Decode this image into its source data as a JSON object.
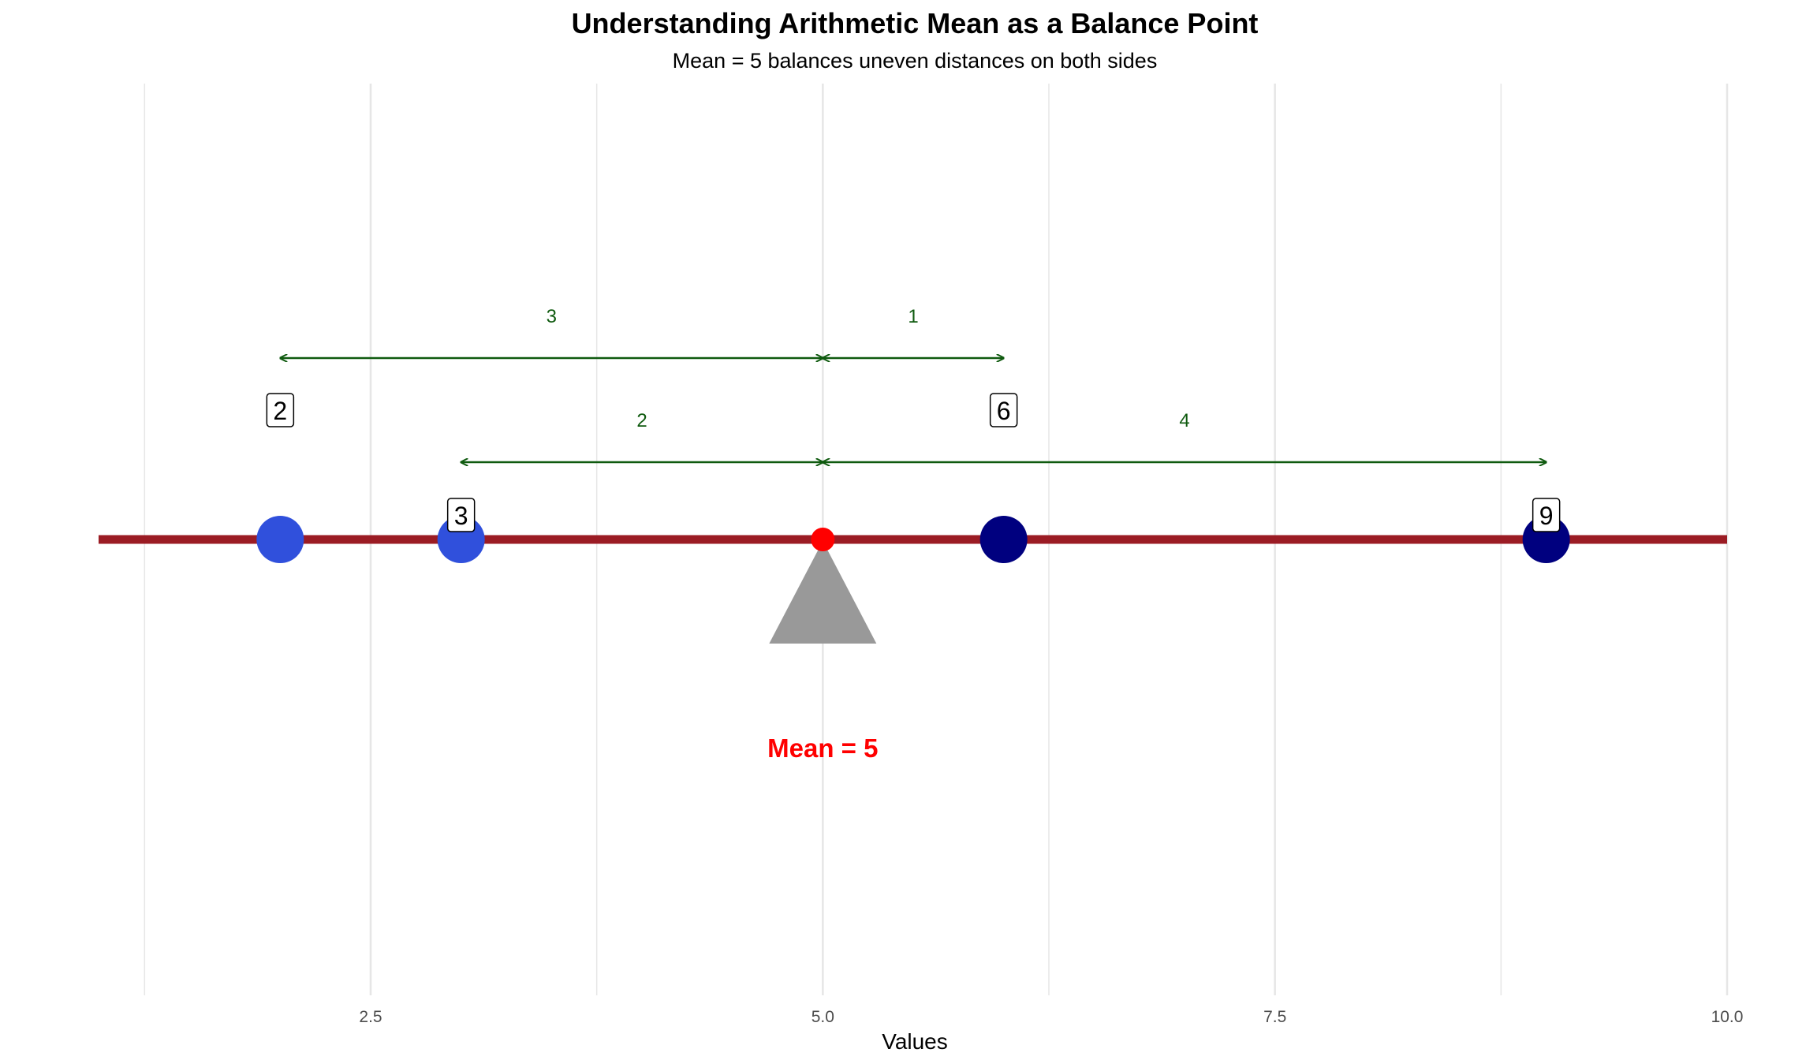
{
  "chart_data": {
    "type": "scatter",
    "title": "Understanding Arithmetic Mean as a Balance Point",
    "subtitle": "Mean = 5 balances uneven distances on both sides",
    "xlabel": "Values",
    "ylabel": "",
    "xlim": [
      1.0,
      10.0
    ],
    "x_ticks": [
      2.5,
      5.0,
      7.5,
      10.0
    ],
    "x_tick_labels": [
      "2.5",
      "5.0",
      "7.5",
      "10.0"
    ],
    "x_minor_ticks": [
      1.25,
      3.75,
      6.25,
      8.75
    ],
    "grid": "vertical",
    "legend": "none",
    "mean": 5,
    "mean_label": "Mean = 5",
    "points": [
      {
        "x": 2,
        "label": "2",
        "side": "left",
        "color": "#3050dc"
      },
      {
        "x": 3,
        "label": "3",
        "side": "left",
        "color": "#3050dc"
      },
      {
        "x": 6,
        "label": "6",
        "side": "right",
        "color": "#00007f"
      },
      {
        "x": 9,
        "label": "9",
        "side": "right",
        "color": "#00007f"
      }
    ],
    "distances": [
      {
        "from": 2,
        "to": 5,
        "label": "3",
        "row": "upper"
      },
      {
        "from": 5,
        "to": 6,
        "label": "1",
        "row": "upper"
      },
      {
        "from": 3,
        "to": 5,
        "label": "2",
        "row": "lower"
      },
      {
        "from": 5,
        "to": 9,
        "label": "4",
        "row": "lower"
      }
    ],
    "colors": {
      "beam": "#9b1c24",
      "fulcrum": "#999999",
      "mean_point": "#ff0000",
      "mean_text": "#ff0000",
      "arrow": "#0f5a0f",
      "grid": "#e6e6e6"
    }
  }
}
